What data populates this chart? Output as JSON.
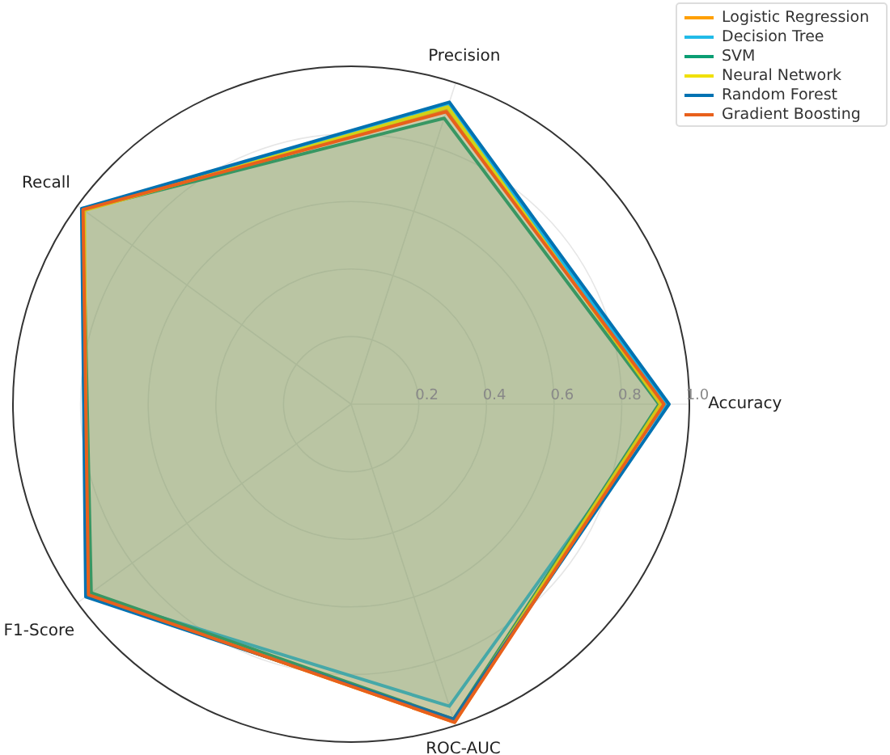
{
  "chart_data": {
    "type": "radar",
    "categories": [
      "Precision",
      "Accuracy",
      "ROC-AUC",
      "F1-Score",
      "Recall"
    ],
    "ylim": [
      0,
      1
    ],
    "yticks": [
      0.2,
      0.4,
      0.6,
      0.8,
      {
        "value": 1,
        "label": "1.0"
      }
    ],
    "grid": true,
    "legend": "top right",
    "series": [
      {
        "name": "Logistic Regression",
        "color": "#ffa000",
        "values": [
          0.92,
          0.92,
          0.99,
          0.96,
          0.98
        ]
      },
      {
        "name": "Decision Tree",
        "color": "#22bbe8",
        "values": [
          0.93,
          0.93,
          0.94,
          0.96,
          0.98
        ]
      },
      {
        "name": "SVM",
        "color": "#0a9e73",
        "values": [
          0.89,
          0.91,
          0.98,
          0.95,
          0.98
        ]
      },
      {
        "name": "Neural Network",
        "color": "#f0e000",
        "values": [
          0.925,
          0.915,
          0.985,
          0.965,
          0.975
        ]
      },
      {
        "name": "Random Forest",
        "color": "#0072b2",
        "values": [
          0.94,
          0.94,
          0.98,
          0.97,
          0.985
        ]
      },
      {
        "name": "Gradient Boosting",
        "color": "#e8601c",
        "values": [
          0.91,
          0.925,
          0.99,
          0.96,
          0.98
        ]
      }
    ]
  }
}
